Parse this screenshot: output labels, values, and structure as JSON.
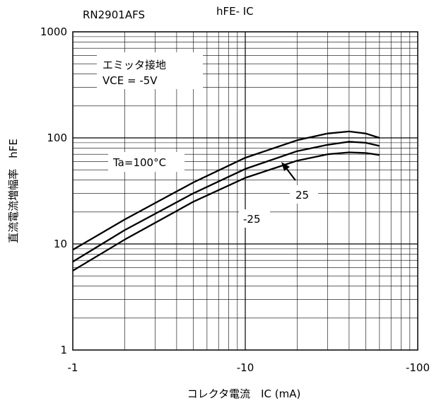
{
  "chart_data": {
    "type": "line",
    "part_number": "RN2901AFS",
    "title": "hFE- IC",
    "xlabel": "コレクタ電流　IC (mA)",
    "ylabel": "直流電流増幅率　hFE",
    "x_scale": "log",
    "y_scale": "log",
    "xlim": [
      -1,
      -60
    ],
    "ylim": [
      1,
      1000
    ],
    "x_tick_labels": [
      "-1",
      "-10",
      "-100"
    ],
    "y_tick_labels": [
      "1",
      "10",
      "100",
      "1000"
    ],
    "grid": true,
    "annotations": [
      "エミッタ接地",
      "VCE = -5V"
    ],
    "series": [
      {
        "name": "Ta=100°C",
        "x": [
          -1,
          -2,
          -5,
          -10,
          -20,
          -30,
          -40,
          -50,
          -60
        ],
        "y": [
          8.8,
          17,
          38,
          65,
          95,
          110,
          115,
          110,
          100
        ]
      },
      {
        "name": "25",
        "x": [
          -1,
          -2,
          -5,
          -10,
          -20,
          -30,
          -40,
          -50,
          -60
        ],
        "y": [
          6.8,
          13.5,
          30,
          51,
          75,
          86,
          92,
          90,
          84
        ]
      },
      {
        "name": "-25",
        "x": [
          -1,
          -2,
          -5,
          -10,
          -20,
          -30,
          -40,
          -50,
          -60
        ],
        "y": [
          5.6,
          11,
          25,
          42,
          61,
          70,
          73,
          72,
          69
        ]
      }
    ]
  }
}
